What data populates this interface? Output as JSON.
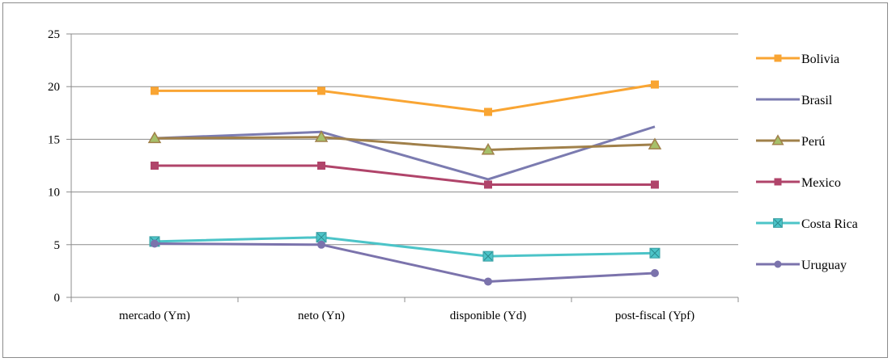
{
  "chart_data": {
    "type": "line",
    "categories": [
      "mercado (Ym)",
      "neto (Yn)",
      "disponible (Yd)",
      "post-fiscal (Ypf)"
    ],
    "ylim": [
      0,
      25
    ],
    "yticks": [
      0,
      5,
      10,
      15,
      20,
      25
    ],
    "grid": true,
    "legend_position": "right",
    "series": [
      {
        "name": "Bolivia",
        "color": "#F9A533",
        "marker": "square",
        "values": [
          19.6,
          19.6,
          17.6,
          20.2
        ]
      },
      {
        "name": "Brasil",
        "color": "#7B7BB0",
        "marker": "none",
        "values": [
          15.1,
          15.7,
          11.2,
          16.2
        ]
      },
      {
        "name": "Perú",
        "color": "#A0804A",
        "marker": "triangle",
        "values": [
          15.1,
          15.2,
          14.0,
          14.5
        ]
      },
      {
        "name": "Mexico",
        "color": "#B0446A",
        "marker": "square",
        "values": [
          12.5,
          12.5,
          10.7,
          10.7
        ]
      },
      {
        "name": "Costa Rica",
        "color": "#4CC4C8",
        "marker": "xsquare",
        "values": [
          5.3,
          5.7,
          3.9,
          4.2
        ]
      },
      {
        "name": "Uruguay",
        "color": "#7B73AC",
        "marker": "circle",
        "values": [
          5.1,
          5.0,
          1.5,
          2.3
        ]
      }
    ]
  }
}
